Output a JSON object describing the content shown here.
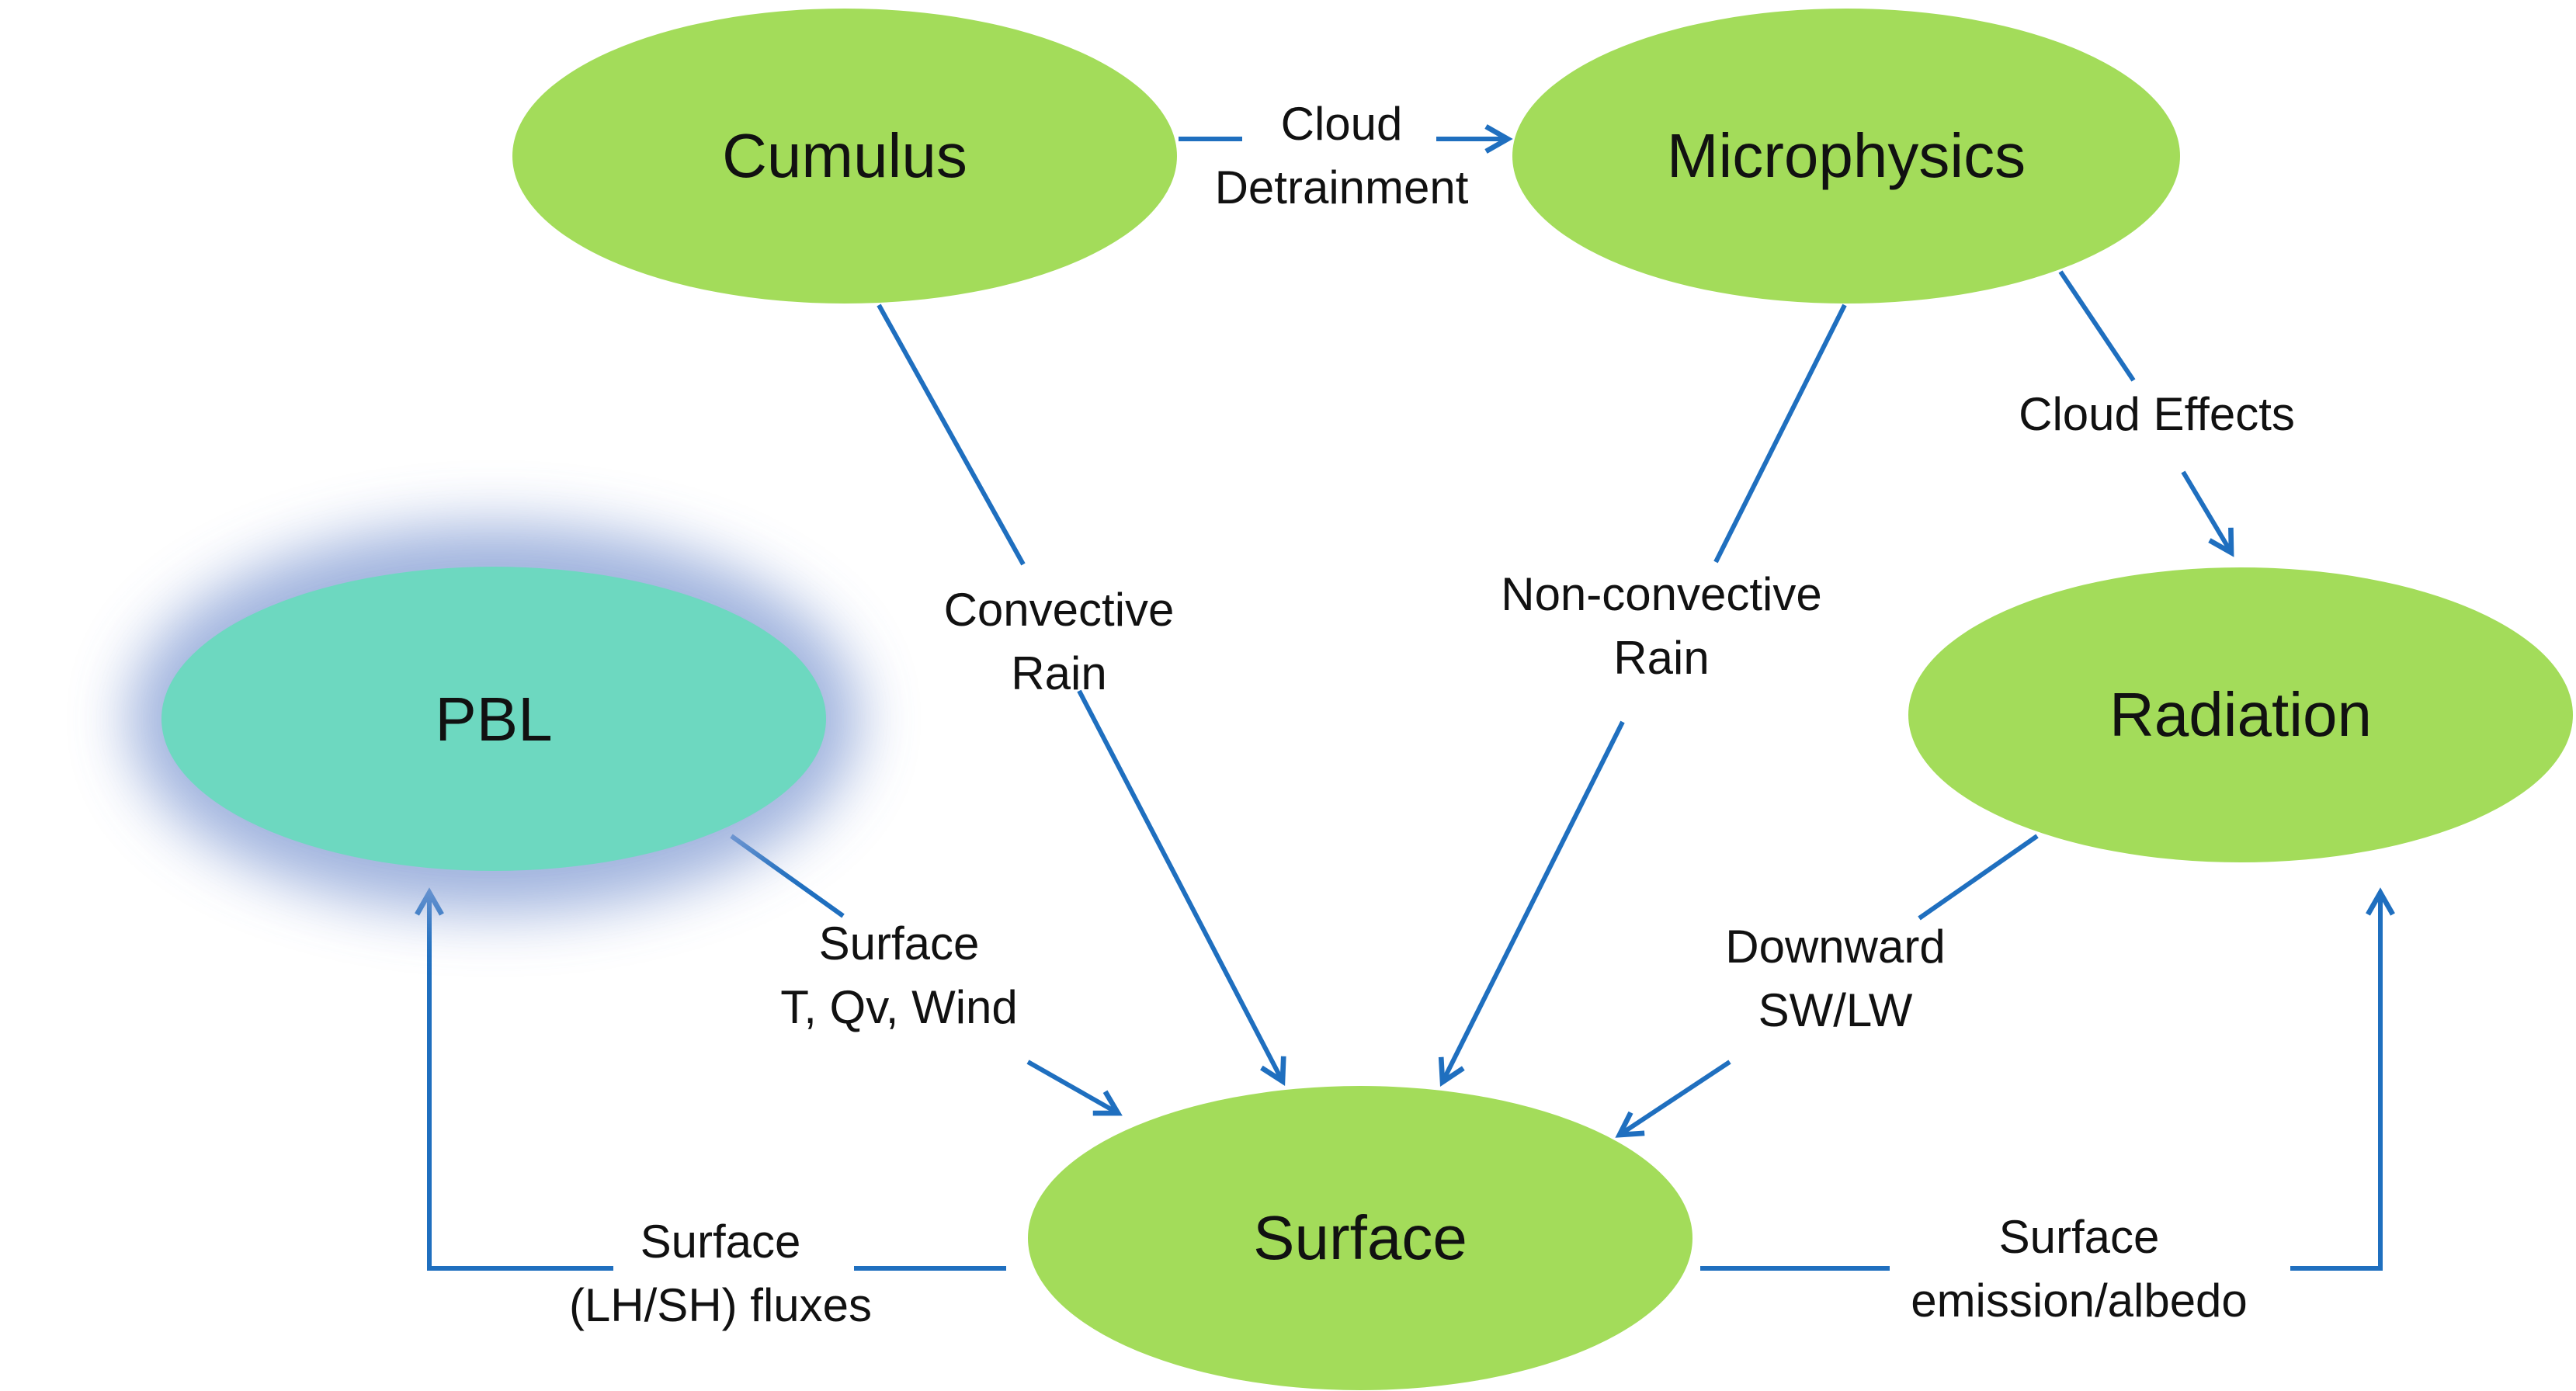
{
  "colors": {
    "node_fill": "#a3dc5a",
    "pbl_fill": "#6dd8c0",
    "pbl_glow": "#8fa6d8",
    "arrow": "#1f6fbf"
  },
  "nodes": {
    "cumulus": "Cumulus",
    "microphysics": "Microphysics",
    "pbl": "PBL",
    "radiation": "Radiation",
    "surface": "Surface"
  },
  "edges": {
    "cloud_detrainment": [
      "Cloud",
      "Detrainment"
    ],
    "convective_rain": [
      "Convective",
      "Rain"
    ],
    "nonconvective_rain": [
      "Non-convective",
      "Rain"
    ],
    "cloud_effects": [
      "Cloud Effects"
    ],
    "surface_tqv_wind": [
      "Surface",
      "T, Qv, Wind"
    ],
    "downward_swlw": [
      "Downward",
      "SW/LW"
    ],
    "surface_fluxes": [
      "Surface",
      "(LH/SH) fluxes"
    ],
    "surface_emission": [
      "Surface",
      "emission/albedo"
    ]
  }
}
